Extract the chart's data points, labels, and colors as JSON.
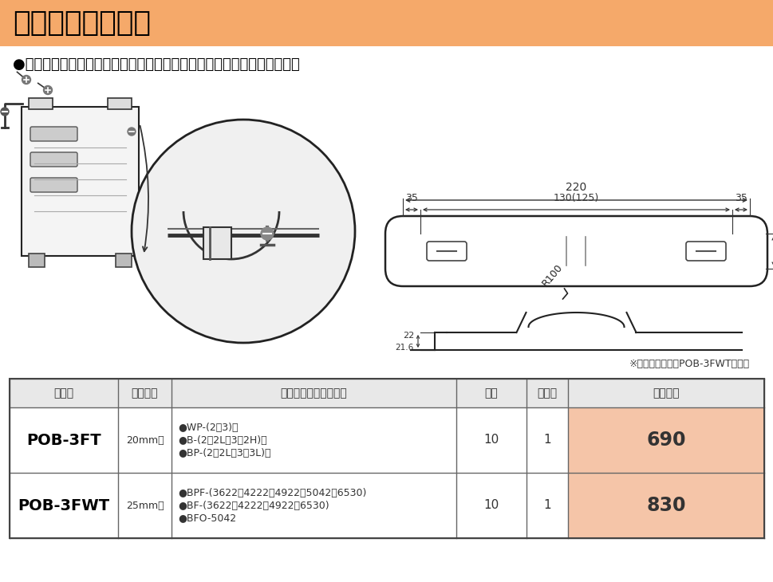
{
  "title": "ポールバンド金具",
  "title_bg": "#F5A96A",
  "bg_color": "#ffffff",
  "dim_color": "#333333",
  "subtitle": "●ボックス、取付板をステンレスバンドでポールに取り付ける金具です。",
  "note": "※（　）内寸法はPOB-3FWTです。",
  "header_labels": [
    "品　番",
    "バンド巾",
    "適合ボックス・取付板",
    "入数",
    "販入数",
    "標準価格"
  ],
  "row1_part": "POB-3FT",
  "row1_band": "20mm辺",
  "row1_compat": "●WP-(2・3)型\n●B-(2・2L・3・2H)型\n●BP-(2・2L・3・3L)型",
  "row1_qty": "10",
  "row1_qty2": "1",
  "row1_price": "690",
  "row2_part": "POB-3FWT",
  "row2_band": "25mm辺",
  "row2_compat": "●BPF-(3622・4222・4922・5042・6530)\n●BF-(3622・4222・4922・6530)\n●BFO-5042",
  "row2_qty": "10",
  "row2_qty2": "1",
  "row2_price": "830",
  "price_bg": "#F5C5A8"
}
